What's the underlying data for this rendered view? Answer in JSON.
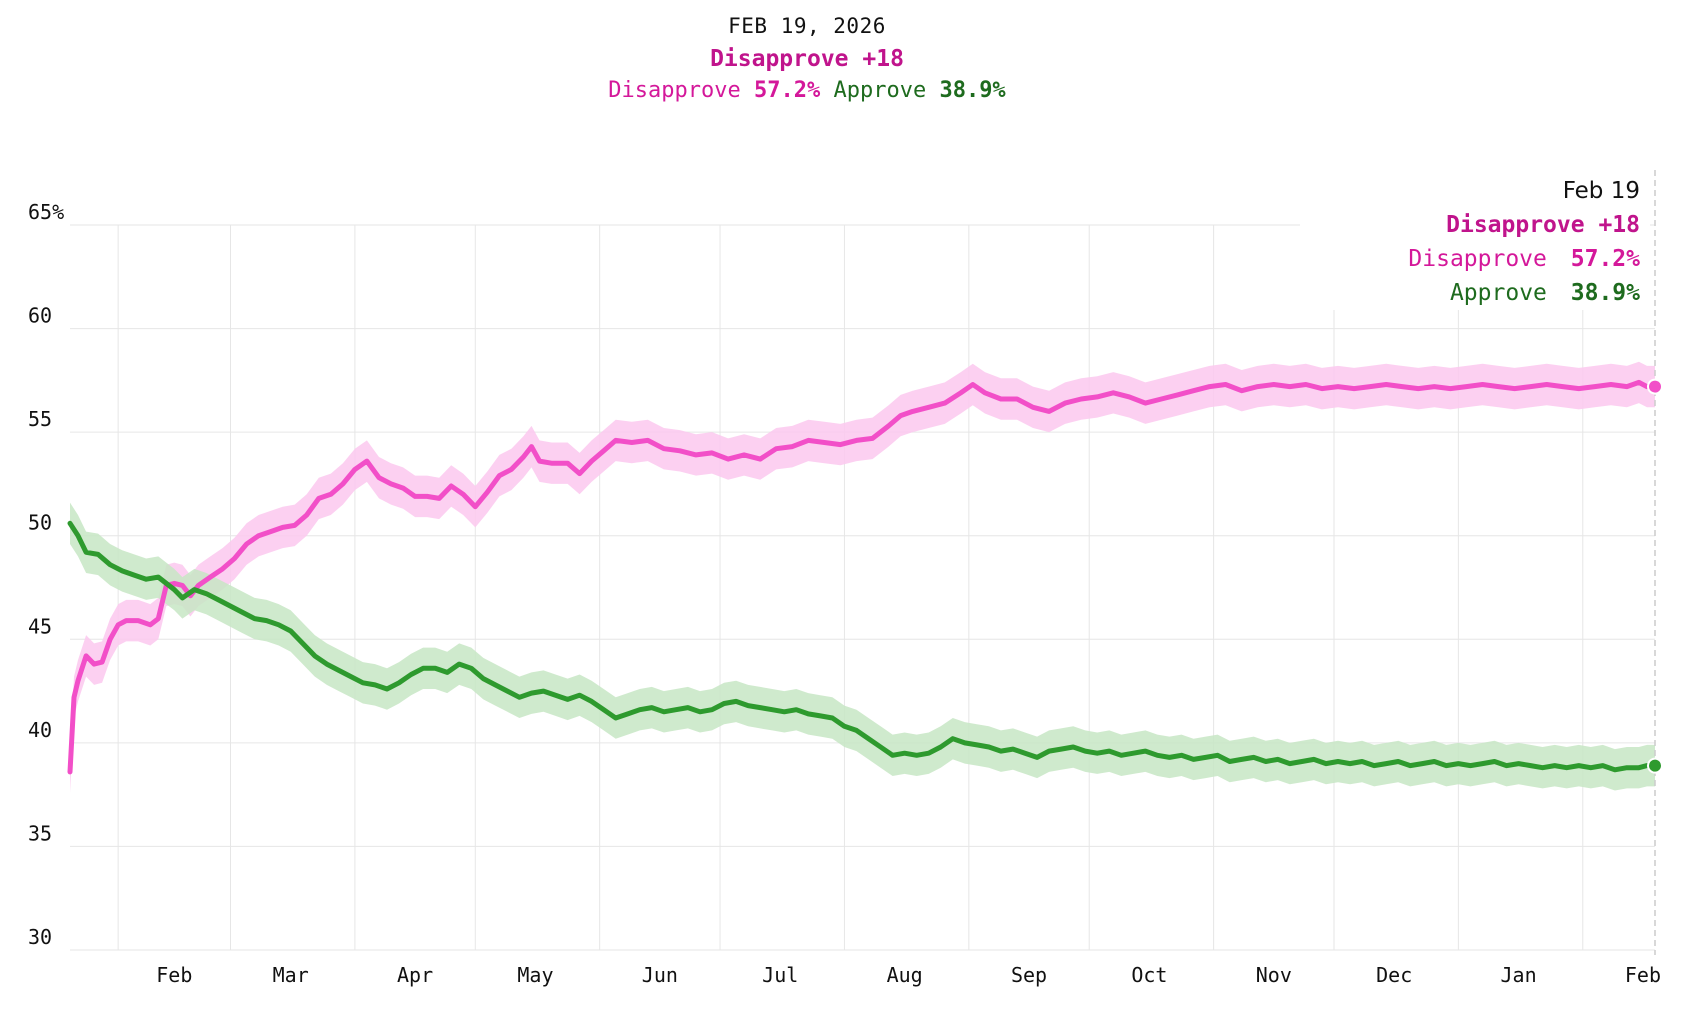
{
  "header": {
    "date": "FEB 19, 2026",
    "margin_label": "Disapprove +18",
    "disapprove_label": "Disapprove",
    "disapprove_value": "57.2%",
    "approve_label": "Approve",
    "approve_value": "38.9%"
  },
  "tooltip": {
    "date": "Feb 19",
    "margin_label": "Disapprove +18",
    "disapprove_label": "Disapprove",
    "disapprove_value": "57.2%",
    "approve_label": "Approve",
    "approve_value": "38.9%"
  },
  "colors": {
    "disapprove_line": "#f24fc8",
    "disapprove_band": "#fcc8ee",
    "disapprove_text": "#d4189a",
    "approve_line": "#2e9a2e",
    "approve_band": "#c7e6c4",
    "approve_text": "#1e6b1e",
    "grid": "#e6e6e6"
  },
  "chart_data": {
    "type": "line",
    "title": "",
    "xlabel": "",
    "ylabel": "",
    "ylim": [
      30,
      65
    ],
    "yticks": [
      30,
      35,
      40,
      45,
      50,
      55,
      60,
      65
    ],
    "ytick_labels": [
      "30",
      "35",
      "40",
      "45",
      "50",
      "55",
      "60",
      "65%"
    ],
    "x_unit": "days since Jan 20, 2025",
    "xlim": [
      0,
      395
    ],
    "month_gridlines": [
      12,
      40,
      71,
      101,
      132,
      162,
      193,
      224,
      254,
      285,
      315,
      346,
      377
    ],
    "xticks": [
      {
        "label": "Feb",
        "x": 26
      },
      {
        "label": "Mar",
        "x": 55
      },
      {
        "label": "Apr",
        "x": 86
      },
      {
        "label": "May",
        "x": 116
      },
      {
        "label": "Jun",
        "x": 147
      },
      {
        "label": "Jul",
        "x": 177
      },
      {
        "label": "Aug",
        "x": 208
      },
      {
        "label": "Sep",
        "x": 239
      },
      {
        "label": "Oct",
        "x": 269
      },
      {
        "label": "Nov",
        "x": 300
      },
      {
        "label": "Dec",
        "x": 330
      },
      {
        "label": "Jan",
        "x": 361
      },
      {
        "label": "Feb",
        "x": 392
      }
    ],
    "band_halfwidth": 1.0,
    "series": [
      {
        "name": "Disapprove",
        "points": [
          [
            0,
            38.6
          ],
          [
            1,
            42.2
          ],
          [
            2,
            43.0
          ],
          [
            4,
            44.2
          ],
          [
            6,
            43.8
          ],
          [
            8,
            43.9
          ],
          [
            10,
            45.0
          ],
          [
            12,
            45.7
          ],
          [
            14,
            45.9
          ],
          [
            17,
            45.9
          ],
          [
            20,
            45.7
          ],
          [
            22,
            46.0
          ],
          [
            24,
            47.6
          ],
          [
            26,
            47.7
          ],
          [
            28,
            47.6
          ],
          [
            30,
            47.1
          ],
          [
            32,
            47.6
          ],
          [
            35,
            48.0
          ],
          [
            38,
            48.4
          ],
          [
            41,
            48.9
          ],
          [
            44,
            49.6
          ],
          [
            47,
            50.0
          ],
          [
            50,
            50.2
          ],
          [
            53,
            50.4
          ],
          [
            56,
            50.5
          ],
          [
            59,
            51.0
          ],
          [
            62,
            51.8
          ],
          [
            65,
            52.0
          ],
          [
            68,
            52.5
          ],
          [
            71,
            53.2
          ],
          [
            74,
            53.6
          ],
          [
            77,
            52.8
          ],
          [
            80,
            52.5
          ],
          [
            83,
            52.3
          ],
          [
            86,
            51.9
          ],
          [
            89,
            51.9
          ],
          [
            92,
            51.8
          ],
          [
            95,
            52.4
          ],
          [
            98,
            52.0
          ],
          [
            101,
            51.4
          ],
          [
            104,
            52.1
          ],
          [
            107,
            52.9
          ],
          [
            110,
            53.2
          ],
          [
            113,
            53.8
          ],
          [
            115,
            54.3
          ],
          [
            117,
            53.6
          ],
          [
            120,
            53.5
          ],
          [
            124,
            53.5
          ],
          [
            127,
            53.0
          ],
          [
            130,
            53.6
          ],
          [
            133,
            54.1
          ],
          [
            136,
            54.6
          ],
          [
            140,
            54.5
          ],
          [
            144,
            54.6
          ],
          [
            148,
            54.2
          ],
          [
            152,
            54.1
          ],
          [
            156,
            53.9
          ],
          [
            160,
            54.0
          ],
          [
            164,
            53.7
          ],
          [
            168,
            53.9
          ],
          [
            172,
            53.7
          ],
          [
            176,
            54.2
          ],
          [
            180,
            54.3
          ],
          [
            184,
            54.6
          ],
          [
            188,
            54.5
          ],
          [
            192,
            54.4
          ],
          [
            196,
            54.6
          ],
          [
            200,
            54.7
          ],
          [
            204,
            55.3
          ],
          [
            207,
            55.8
          ],
          [
            210,
            56.0
          ],
          [
            214,
            56.2
          ],
          [
            218,
            56.4
          ],
          [
            222,
            56.9
          ],
          [
            225,
            57.3
          ],
          [
            228,
            56.9
          ],
          [
            232,
            56.6
          ],
          [
            236,
            56.6
          ],
          [
            240,
            56.2
          ],
          [
            244,
            56.0
          ],
          [
            248,
            56.4
          ],
          [
            252,
            56.6
          ],
          [
            256,
            56.7
          ],
          [
            260,
            56.9
          ],
          [
            264,
            56.7
          ],
          [
            268,
            56.4
          ],
          [
            272,
            56.6
          ],
          [
            276,
            56.8
          ],
          [
            280,
            57.0
          ],
          [
            284,
            57.2
          ],
          [
            288,
            57.3
          ],
          [
            292,
            57.0
          ],
          [
            296,
            57.2
          ],
          [
            300,
            57.3
          ],
          [
            304,
            57.2
          ],
          [
            308,
            57.3
          ],
          [
            312,
            57.1
          ],
          [
            316,
            57.2
          ],
          [
            320,
            57.1
          ],
          [
            324,
            57.2
          ],
          [
            328,
            57.3
          ],
          [
            332,
            57.2
          ],
          [
            336,
            57.1
          ],
          [
            340,
            57.2
          ],
          [
            344,
            57.1
          ],
          [
            348,
            57.2
          ],
          [
            352,
            57.3
          ],
          [
            356,
            57.2
          ],
          [
            360,
            57.1
          ],
          [
            364,
            57.2
          ],
          [
            368,
            57.3
          ],
          [
            372,
            57.2
          ],
          [
            376,
            57.1
          ],
          [
            380,
            57.2
          ],
          [
            384,
            57.3
          ],
          [
            388,
            57.2
          ],
          [
            391,
            57.4
          ],
          [
            393,
            57.2
          ],
          [
            395,
            57.2
          ]
        ]
      },
      {
        "name": "Approve",
        "points": [
          [
            0,
            50.6
          ],
          [
            2,
            50.0
          ],
          [
            4,
            49.2
          ],
          [
            7,
            49.1
          ],
          [
            10,
            48.6
          ],
          [
            13,
            48.3
          ],
          [
            16,
            48.1
          ],
          [
            19,
            47.9
          ],
          [
            22,
            48.0
          ],
          [
            24,
            47.7
          ],
          [
            26,
            47.4
          ],
          [
            28,
            47.0
          ],
          [
            31,
            47.4
          ],
          [
            34,
            47.2
          ],
          [
            37,
            46.9
          ],
          [
            40,
            46.6
          ],
          [
            43,
            46.3
          ],
          [
            46,
            46.0
          ],
          [
            49,
            45.9
          ],
          [
            52,
            45.7
          ],
          [
            55,
            45.4
          ],
          [
            58,
            44.8
          ],
          [
            61,
            44.2
          ],
          [
            64,
            43.8
          ],
          [
            67,
            43.5
          ],
          [
            70,
            43.2
          ],
          [
            73,
            42.9
          ],
          [
            76,
            42.8
          ],
          [
            79,
            42.6
          ],
          [
            82,
            42.9
          ],
          [
            85,
            43.3
          ],
          [
            88,
            43.6
          ],
          [
            91,
            43.6
          ],
          [
            94,
            43.4
          ],
          [
            97,
            43.8
          ],
          [
            100,
            43.6
          ],
          [
            103,
            43.1
          ],
          [
            106,
            42.8
          ],
          [
            109,
            42.5
          ],
          [
            112,
            42.2
          ],
          [
            115,
            42.4
          ],
          [
            118,
            42.5
          ],
          [
            121,
            42.3
          ],
          [
            124,
            42.1
          ],
          [
            127,
            42.3
          ],
          [
            130,
            42.0
          ],
          [
            133,
            41.6
          ],
          [
            136,
            41.2
          ],
          [
            139,
            41.4
          ],
          [
            142,
            41.6
          ],
          [
            145,
            41.7
          ],
          [
            148,
            41.5
          ],
          [
            151,
            41.6
          ],
          [
            154,
            41.7
          ],
          [
            157,
            41.5
          ],
          [
            160,
            41.6
          ],
          [
            163,
            41.9
          ],
          [
            166,
            42.0
          ],
          [
            169,
            41.8
          ],
          [
            172,
            41.7
          ],
          [
            175,
            41.6
          ],
          [
            178,
            41.5
          ],
          [
            181,
            41.6
          ],
          [
            184,
            41.4
          ],
          [
            187,
            41.3
          ],
          [
            190,
            41.2
          ],
          [
            193,
            40.8
          ],
          [
            196,
            40.6
          ],
          [
            199,
            40.2
          ],
          [
            202,
            39.8
          ],
          [
            205,
            39.4
          ],
          [
            208,
            39.5
          ],
          [
            211,
            39.4
          ],
          [
            214,
            39.5
          ],
          [
            217,
            39.8
          ],
          [
            220,
            40.2
          ],
          [
            223,
            40.0
          ],
          [
            226,
            39.9
          ],
          [
            229,
            39.8
          ],
          [
            232,
            39.6
          ],
          [
            235,
            39.7
          ],
          [
            238,
            39.5
          ],
          [
            241,
            39.3
          ],
          [
            244,
            39.6
          ],
          [
            247,
            39.7
          ],
          [
            250,
            39.8
          ],
          [
            253,
            39.6
          ],
          [
            256,
            39.5
          ],
          [
            259,
            39.6
          ],
          [
            262,
            39.4
          ],
          [
            265,
            39.5
          ],
          [
            268,
            39.6
          ],
          [
            271,
            39.4
          ],
          [
            274,
            39.3
          ],
          [
            277,
            39.4
          ],
          [
            280,
            39.2
          ],
          [
            283,
            39.3
          ],
          [
            286,
            39.4
          ],
          [
            289,
            39.1
          ],
          [
            292,
            39.2
          ],
          [
            295,
            39.3
          ],
          [
            298,
            39.1
          ],
          [
            301,
            39.2
          ],
          [
            304,
            39.0
          ],
          [
            307,
            39.1
          ],
          [
            310,
            39.2
          ],
          [
            313,
            39.0
          ],
          [
            316,
            39.1
          ],
          [
            319,
            39.0
          ],
          [
            322,
            39.1
          ],
          [
            325,
            38.9
          ],
          [
            328,
            39.0
          ],
          [
            331,
            39.1
          ],
          [
            334,
            38.9
          ],
          [
            337,
            39.0
          ],
          [
            340,
            39.1
          ],
          [
            343,
            38.9
          ],
          [
            346,
            39.0
          ],
          [
            349,
            38.9
          ],
          [
            352,
            39.0
          ],
          [
            355,
            39.1
          ],
          [
            358,
            38.9
          ],
          [
            361,
            39.0
          ],
          [
            364,
            38.9
          ],
          [
            367,
            38.8
          ],
          [
            370,
            38.9
          ],
          [
            373,
            38.8
          ],
          [
            376,
            38.9
          ],
          [
            379,
            38.8
          ],
          [
            382,
            38.9
          ],
          [
            385,
            38.7
          ],
          [
            388,
            38.8
          ],
          [
            391,
            38.8
          ],
          [
            393,
            38.9
          ],
          [
            395,
            38.9
          ]
        ]
      }
    ]
  }
}
